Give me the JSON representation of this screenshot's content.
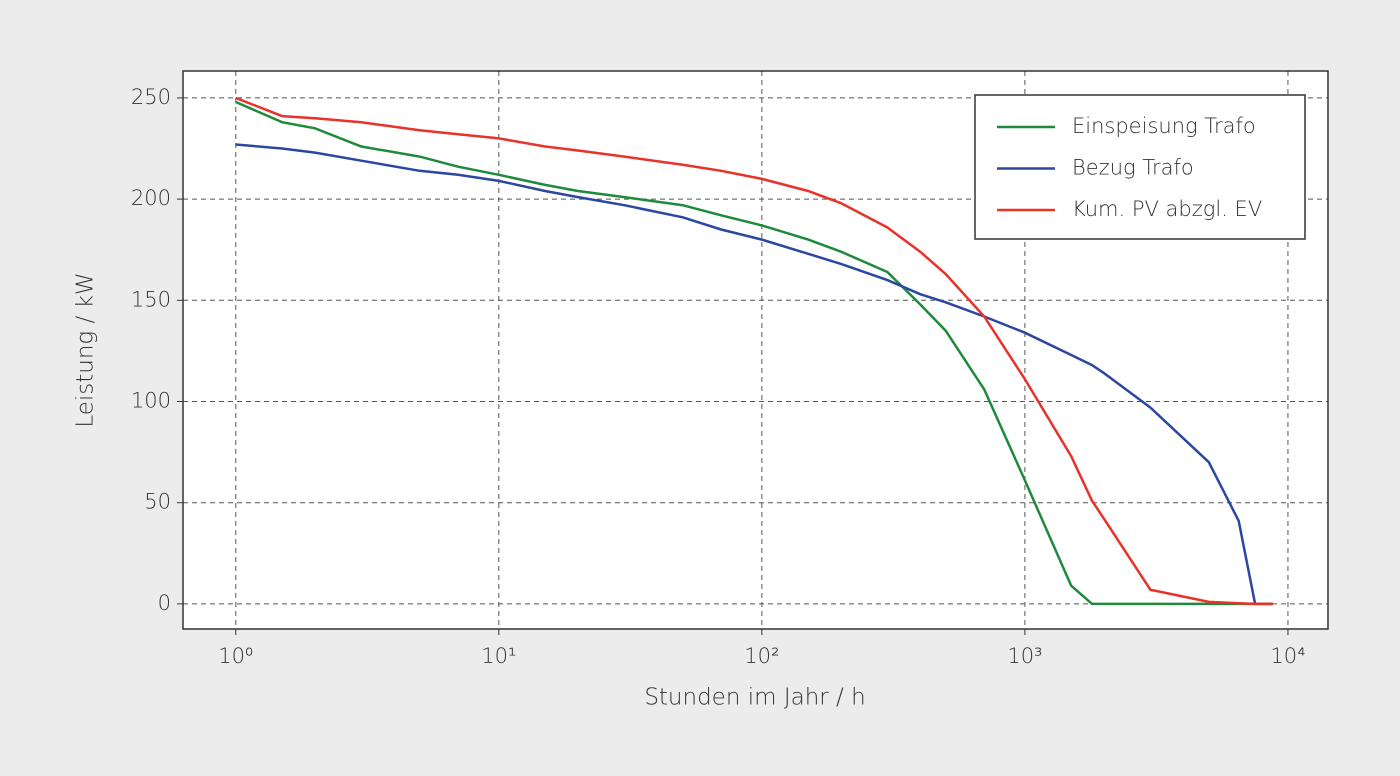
{
  "chart_data": {
    "type": "line",
    "xlabel": "Stunden im Jahr / h",
    "ylabel": "Leistung / kW",
    "x": [
      1,
      1.5,
      2,
      3,
      5,
      7,
      10,
      15,
      20,
      30,
      50,
      70,
      100,
      150,
      200,
      300,
      400,
      500,
      700,
      1000,
      1500,
      1800,
      2000,
      3000,
      5000,
      6500,
      7500,
      8760
    ],
    "series": [
      {
        "name": "Einspeisung Trafo",
        "color": "#1f8a3c",
        "values": [
          248,
          238,
          235,
          226,
          221,
          216,
          212,
          207,
          204,
          201,
          197,
          192,
          187,
          180,
          174,
          164,
          148,
          135,
          106,
          61,
          9,
          0,
          0,
          0,
          0,
          0,
          0,
          0
        ]
      },
      {
        "name": "Bezug Trafo",
        "color": "#2c47a0",
        "values": [
          227,
          225,
          223,
          219,
          214,
          212,
          209,
          204,
          201,
          197,
          191,
          185,
          180,
          173,
          168,
          160,
          153,
          149,
          142,
          134,
          123,
          118,
          114,
          97,
          70,
          41,
          0,
          0
        ]
      },
      {
        "name": "Kum. PV abzgl. EV",
        "color": "#e8322a",
        "values": [
          250,
          241,
          240,
          238,
          234,
          232,
          230,
          226,
          224,
          221,
          217,
          214,
          210,
          204,
          198,
          186,
          174,
          163,
          142,
          111,
          73,
          51,
          42,
          7,
          1,
          0.3,
          0,
          0
        ]
      }
    ],
    "xscale": "log",
    "xlim": [
      0.63,
      14200
    ],
    "ylim": [
      -12.4,
      263.3
    ],
    "xticks": [
      {
        "value": 1,
        "label": "10⁰"
      },
      {
        "value": 10,
        "label": "10¹"
      },
      {
        "value": 100,
        "label": "10²"
      },
      {
        "value": 1000,
        "label": "10³"
      },
      {
        "value": 10000,
        "label": "10⁴"
      }
    ],
    "yticks": [
      0,
      50,
      100,
      150,
      200,
      250
    ],
    "grid": true,
    "legend": "upper right"
  }
}
